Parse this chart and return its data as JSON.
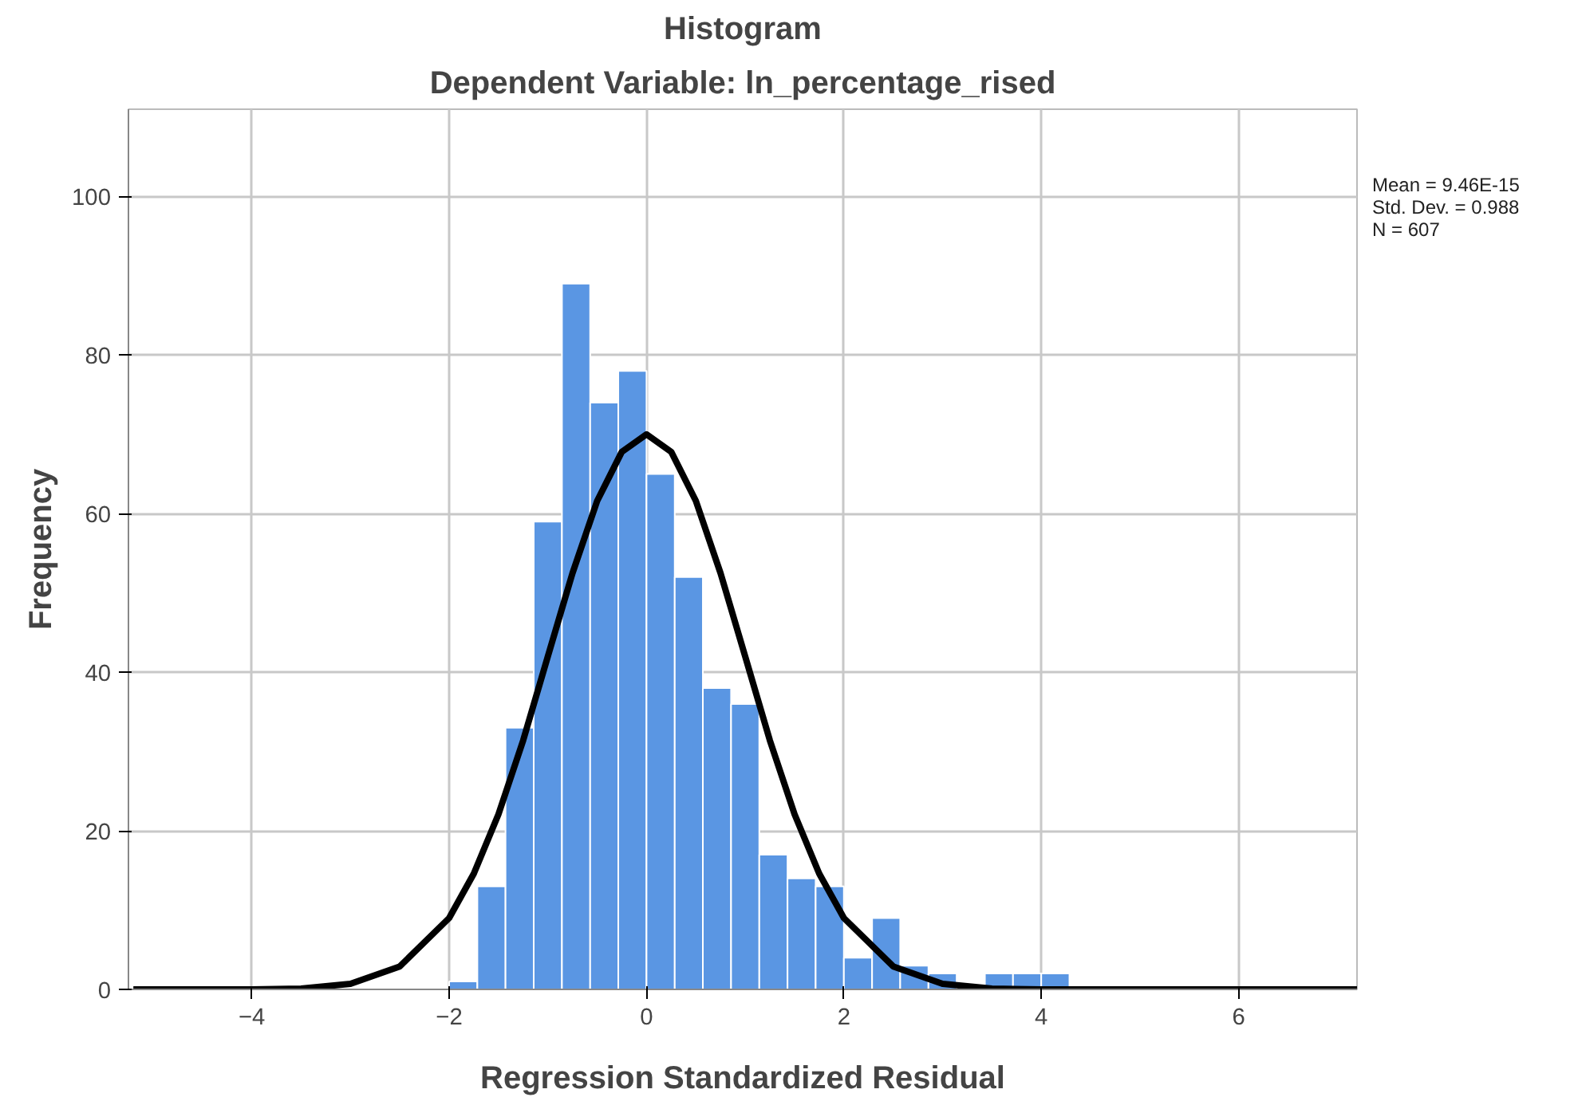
{
  "chart_data": {
    "type": "histogram",
    "title": "Histogram",
    "subtitle": "Dependent Variable: ln_percentage_rised",
    "xlabel": "Regression Standardized Residual",
    "ylabel": "Frequency",
    "bins": [
      -2,
      -1.714,
      -1.429,
      -1.143,
      -0.857,
      -0.571,
      -0.286,
      0,
      0.286,
      0.571,
      0.857,
      1.143,
      1.429,
      1.714,
      2,
      2.286,
      2.571,
      2.857,
      3.143,
      3.429,
      3.714,
      4,
      4.286
    ],
    "values": [
      1,
      13,
      33,
      59,
      89,
      74,
      78,
      65,
      52,
      38,
      36,
      17,
      14,
      13,
      4,
      9,
      3,
      2,
      0,
      2,
      2,
      2
    ],
    "color": "#5a96e3",
    "series": [
      {
        "type": "line",
        "color": "#000000",
        "x": [
          -5.2,
          -4,
          -3.5,
          -3,
          -2.5,
          -2,
          -1.75,
          -1.5,
          -1.25,
          -1,
          -0.75,
          -0.5,
          -0.25,
          0,
          0.25,
          0.5,
          0.75,
          1,
          1.25,
          1.5,
          1.75,
          2,
          2.5,
          3,
          3.5,
          4,
          5,
          7.2
        ],
        "values": [
          0,
          0,
          0.1,
          0.7,
          2.9,
          9,
          14.6,
          22.1,
          31.4,
          42,
          52.5,
          61.6,
          67.8,
          70,
          67.8,
          61.6,
          52.5,
          42,
          31.4,
          22.1,
          14.6,
          9,
          2.9,
          0.7,
          0.1,
          0,
          0,
          0
        ]
      }
    ],
    "annotations": [
      "Mean = 9.46E-15",
      "Std. Dev. = 0.988",
      "N = 607"
    ],
    "xlim": [
      -5.25,
      7.2
    ],
    "ylim": [
      0,
      111
    ],
    "xticks": [
      -4,
      -2,
      0,
      2,
      4,
      6
    ],
    "yticks": [
      0,
      20,
      40,
      60,
      80,
      100
    ],
    "grid": true
  }
}
